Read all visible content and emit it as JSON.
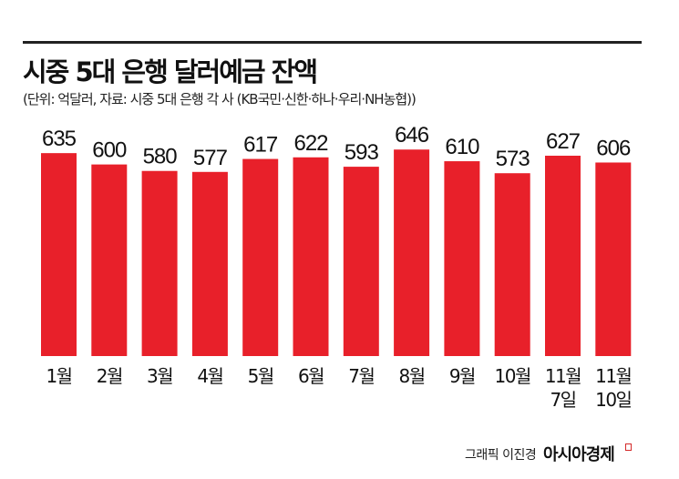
{
  "header": {
    "title": "시중 5대 은행 달러예금 잔액",
    "subtitle": "(단위: 억달러, 자료: 시중 5대 은행 각 사 (KB국민·신한·하나·우리·NH농협))"
  },
  "footer": {
    "credit": "그래픽 이진경",
    "brand": "아시아경제"
  },
  "colors": {
    "bar": "#e8202a",
    "text": "#111111"
  },
  "chart_data": {
    "type": "bar",
    "title": "시중 5대 은행 달러예금 잔액",
    "unit": "억달러",
    "categories": [
      [
        "1월"
      ],
      [
        "2월"
      ],
      [
        "3월"
      ],
      [
        "4월"
      ],
      [
        "5월"
      ],
      [
        "6월"
      ],
      [
        "7월"
      ],
      [
        "8월"
      ],
      [
        "9월"
      ],
      [
        "10월"
      ],
      [
        "11월",
        "7일"
      ],
      [
        "11월",
        "10일"
      ]
    ],
    "values": [
      635,
      600,
      580,
      577,
      617,
      622,
      593,
      646,
      610,
      573,
      627,
      606
    ],
    "xlabel": "",
    "ylabel": "",
    "grid": false,
    "legend": "none"
  }
}
